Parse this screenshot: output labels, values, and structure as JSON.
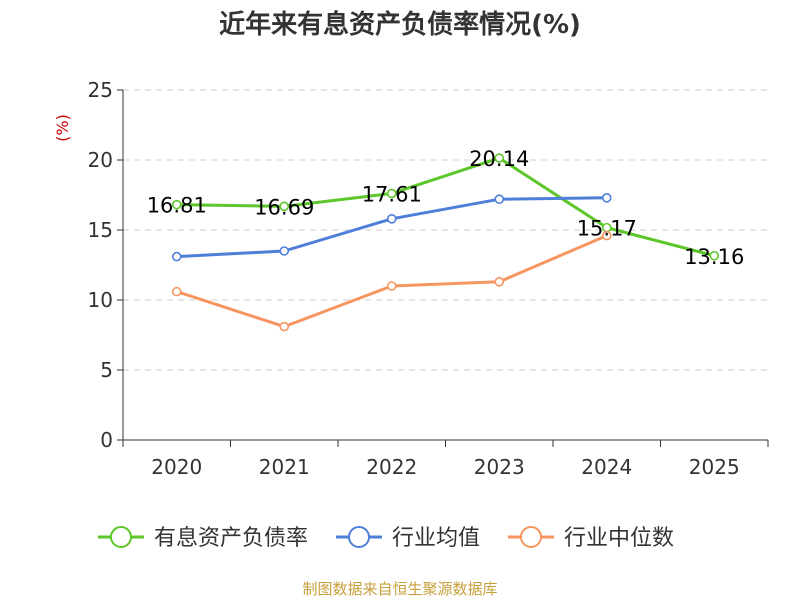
{
  "chart_data": {
    "type": "line",
    "title": "近年来有息资产负债率情况(%)",
    "ylabel": "(%)",
    "xlabel": "",
    "categories": [
      "2020",
      "2021",
      "2022",
      "2023",
      "2024",
      "2025"
    ],
    "ylim": [
      0,
      25
    ],
    "yticks": [
      0,
      5,
      10,
      15,
      20,
      25
    ],
    "grid": true,
    "legend_position": "bottom",
    "series": [
      {
        "name": "有息资产负债率",
        "color": "#5cc62b",
        "values": [
          16.81,
          16.69,
          17.61,
          20.14,
          15.17,
          13.16
        ],
        "labels": [
          "16.81",
          "16.69",
          "17.61",
          "20.14",
          "15.17",
          "13.16"
        ]
      },
      {
        "name": "行业均值",
        "color": "#4e7fd9",
        "values": [
          13.1,
          13.5,
          15.8,
          17.2,
          17.3,
          null
        ]
      },
      {
        "name": "行业中位数",
        "color": "#f79560",
        "values": [
          10.6,
          8.1,
          11.0,
          11.3,
          14.6,
          null
        ]
      }
    ]
  },
  "source": "制图数据来自恒生聚源数据库",
  "colors": {
    "ylabel": "#cc0000",
    "source": "#c8a03c",
    "grid": "#cccccc",
    "axis": "#333333"
  }
}
